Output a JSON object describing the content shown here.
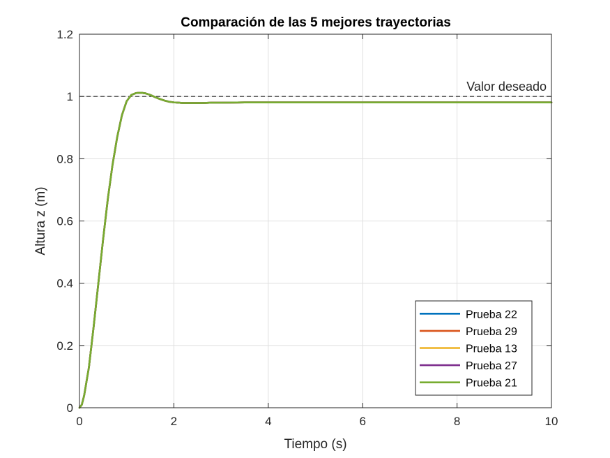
{
  "chart_data": {
    "type": "line",
    "title": "Comparación de las 5 mejores trayectorias",
    "xlabel": "Tiempo (s)",
    "ylabel": "Altura z (m)",
    "xlim": [
      0,
      10
    ],
    "ylim": [
      0,
      1.2
    ],
    "xticks": [
      0,
      2,
      4,
      6,
      8,
      10
    ],
    "yticks": [
      0,
      0.2,
      0.4,
      0.6,
      0.8,
      1,
      1.2
    ],
    "xtick_labels": [
      "0",
      "2",
      "4",
      "6",
      "8",
      "10"
    ],
    "ytick_labels": [
      "0",
      "0.2",
      "0.4",
      "0.6",
      "0.8",
      "1",
      "1.2"
    ],
    "grid": true,
    "legend_position": "bottom-right",
    "reference_line": {
      "y": 1,
      "label": "Valor deseado",
      "color": "#000000",
      "style": "dashed"
    },
    "x": [
      0,
      0.05,
      0.1,
      0.2,
      0.3,
      0.4,
      0.5,
      0.6,
      0.7,
      0.8,
      0.9,
      1.0,
      1.1,
      1.2,
      1.3,
      1.4,
      1.5,
      1.6,
      1.7,
      1.8,
      1.9,
      2.0,
      2.2,
      2.4,
      2.6,
      2.8,
      3.0,
      3.5,
      4.0,
      5.0,
      6.0,
      7.0,
      8.0,
      9.0,
      10.0
    ],
    "series": [
      {
        "name": "Prueba 22",
        "color": "#0072BD",
        "values": [
          0,
          0.01,
          0.04,
          0.13,
          0.26,
          0.4,
          0.54,
          0.67,
          0.78,
          0.87,
          0.94,
          0.985,
          1.005,
          1.011,
          1.012,
          1.01,
          1.005,
          0.998,
          0.992,
          0.987,
          0.983,
          0.981,
          0.979,
          0.979,
          0.979,
          0.98,
          0.98,
          0.981,
          0.981,
          0.981,
          0.981,
          0.981,
          0.981,
          0.981,
          0.981
        ]
      },
      {
        "name": "Prueba 29",
        "color": "#D95319",
        "values": [
          0,
          0.01,
          0.04,
          0.13,
          0.26,
          0.4,
          0.54,
          0.67,
          0.78,
          0.87,
          0.94,
          0.985,
          1.005,
          1.011,
          1.012,
          1.01,
          1.005,
          0.998,
          0.992,
          0.987,
          0.983,
          0.981,
          0.979,
          0.979,
          0.979,
          0.98,
          0.98,
          0.981,
          0.981,
          0.981,
          0.981,
          0.981,
          0.981,
          0.981,
          0.981
        ]
      },
      {
        "name": "Prueba 13",
        "color": "#EDB120",
        "values": [
          0,
          0.01,
          0.04,
          0.13,
          0.26,
          0.4,
          0.54,
          0.67,
          0.78,
          0.87,
          0.94,
          0.985,
          1.005,
          1.011,
          1.012,
          1.01,
          1.005,
          0.998,
          0.992,
          0.987,
          0.983,
          0.981,
          0.979,
          0.979,
          0.979,
          0.98,
          0.98,
          0.981,
          0.981,
          0.981,
          0.981,
          0.981,
          0.981,
          0.981,
          0.981
        ]
      },
      {
        "name": "Prueba 27",
        "color": "#7E2F8E",
        "values": [
          0,
          0.01,
          0.04,
          0.13,
          0.26,
          0.4,
          0.54,
          0.67,
          0.78,
          0.87,
          0.94,
          0.985,
          1.005,
          1.011,
          1.012,
          1.01,
          1.005,
          0.998,
          0.992,
          0.987,
          0.983,
          0.981,
          0.979,
          0.979,
          0.979,
          0.98,
          0.98,
          0.981,
          0.981,
          0.981,
          0.981,
          0.981,
          0.981,
          0.981,
          0.981
        ]
      },
      {
        "name": "Prueba 21",
        "color": "#77AC30",
        "values": [
          0,
          0.01,
          0.04,
          0.13,
          0.26,
          0.4,
          0.54,
          0.67,
          0.78,
          0.87,
          0.94,
          0.985,
          1.005,
          1.011,
          1.012,
          1.01,
          1.005,
          0.998,
          0.992,
          0.987,
          0.983,
          0.981,
          0.979,
          0.979,
          0.979,
          0.98,
          0.98,
          0.981,
          0.981,
          0.981,
          0.981,
          0.981,
          0.981,
          0.981,
          0.981
        ]
      }
    ]
  }
}
